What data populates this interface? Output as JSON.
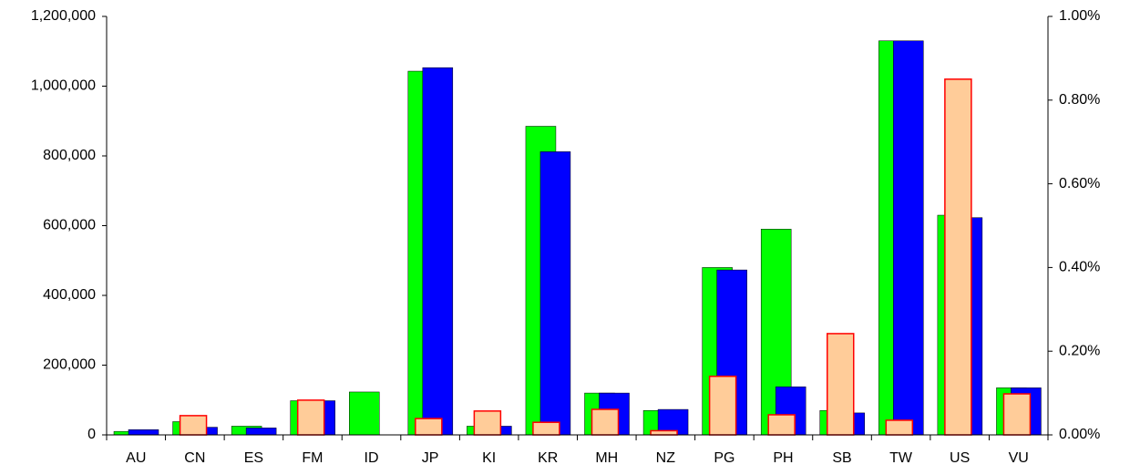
{
  "chart_data": {
    "type": "bar",
    "categories": [
      "AU",
      "CN",
      "ES",
      "FM",
      "ID",
      "JP",
      "KI",
      "KR",
      "MH",
      "NZ",
      "PG",
      "PH",
      "SB",
      "TW",
      "US",
      "VU"
    ],
    "series": [
      {
        "color": "#00ff00",
        "values": [
          10000,
          38000,
          25000,
          98000,
          123000,
          1043000,
          25000,
          885000,
          120000,
          70000,
          480000,
          590000,
          70000,
          1130000,
          630000,
          135000
        ]
      },
      {
        "color": "#0000ff",
        "values": [
          15000,
          22000,
          20000,
          98000,
          null,
          1053000,
          25000,
          812000,
          120000,
          73000,
          473000,
          138000,
          63000,
          1130000,
          623000,
          135000
        ]
      },
      {
        "color": "#ffcc99",
        "axis": "y2",
        "values": [
          null,
          0.046,
          null,
          0.083,
          null,
          0.039,
          0.057,
          0.03,
          0.061,
          0.01,
          0.14,
          0.048,
          0.242,
          0.035,
          0.85,
          0.098
        ]
      }
    ],
    "ylim": [
      0,
      1200000
    ],
    "yticks": [
      0,
      {
        "value": 200000,
        "label": "200,000"
      },
      {
        "value": 400000,
        "label": "400,000"
      },
      {
        "value": 600000,
        "label": "600,000"
      },
      {
        "value": 800000,
        "label": "800,000"
      },
      {
        "value": 1000000,
        "label": "1,000,000"
      },
      {
        "value": 1200000,
        "label": "1,200,000"
      }
    ],
    "y2lim": [
      0,
      1.0
    ],
    "y2ticks": [
      {
        "value": 0,
        "label": "0.00%"
      },
      {
        "value": 0.2,
        "label": "0.20%"
      },
      {
        "value": 0.4,
        "label": "0.40%"
      },
      {
        "value": 0.6,
        "label": "0.60%"
      },
      {
        "value": 0.8,
        "label": "0.80%"
      },
      {
        "value": 1.0,
        "label": "1.00%"
      }
    ]
  }
}
